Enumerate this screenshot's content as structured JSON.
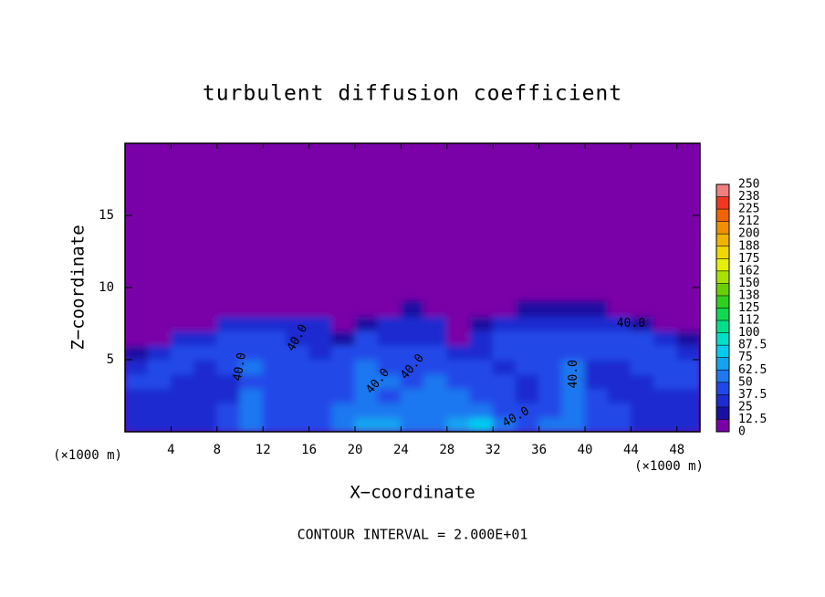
{
  "chart_data": {
    "type": "contour",
    "title": "turbulent diffusion coefficient",
    "xlabel": "X−coordinate",
    "ylabel": "Z−coordinate",
    "x_unit": "(×1000 m)",
    "x_unit_right": "(×1000 m)",
    "note": "CONTOUR INTERVAL = 2.000E+01",
    "xlim": [
      0,
      50
    ],
    "xticks": [
      4,
      8,
      12,
      16,
      20,
      24,
      28,
      32,
      36,
      40,
      44,
      48
    ],
    "ylim": [
      0,
      20
    ],
    "yticks": [
      5,
      10,
      15
    ],
    "contour_labels": [
      "40.0",
      "40.0",
      "40.0",
      "40.0",
      "40.0",
      "40.0",
      "40.0"
    ],
    "contour_color": "#000000",
    "field": {
      "x": [
        1,
        3,
        5,
        7,
        9,
        11,
        13,
        15,
        17,
        19,
        21,
        23,
        25,
        27,
        29,
        31,
        33,
        35,
        37,
        39,
        41,
        43,
        45,
        47,
        49
      ],
      "z": [
        0.5,
        1.5,
        2.5,
        3.5,
        4.5,
        5.5,
        6.5,
        7.5,
        8.5
      ],
      "values": [
        [
          30,
          30,
          35,
          35,
          40,
          55,
          45,
          40,
          45,
          60,
          65,
          70,
          55,
          60,
          70,
          75,
          60,
          45,
          50,
          60,
          45,
          40,
          35,
          35,
          35
        ],
        [
          25,
          25,
          30,
          35,
          40,
          50,
          40,
          40,
          45,
          50,
          60,
          55,
          50,
          55,
          60,
          55,
          45,
          40,
          45,
          55,
          40,
          40,
          35,
          35,
          35
        ],
        [
          35,
          30,
          25,
          25,
          30,
          50,
          40,
          40,
          40,
          45,
          55,
          45,
          50,
          55,
          50,
          45,
          40,
          35,
          40,
          50,
          40,
          35,
          30,
          35,
          35
        ],
        [
          40,
          40,
          35,
          30,
          35,
          45,
          45,
          40,
          40,
          45,
          50,
          50,
          45,
          50,
          45,
          40,
          40,
          35,
          40,
          50,
          35,
          30,
          35,
          40,
          40
        ],
        [
          30,
          45,
          40,
          35,
          40,
          50,
          45,
          40,
          40,
          40,
          50,
          45,
          40,
          45,
          40,
          40,
          35,
          40,
          40,
          50,
          35,
          35,
          40,
          40,
          40
        ],
        [
          20,
          35,
          40,
          40,
          40,
          45,
          40,
          40,
          35,
          40,
          45,
          40,
          40,
          45,
          30,
          35,
          40,
          40,
          40,
          45,
          40,
          40,
          40,
          40,
          35
        ],
        [
          5,
          10,
          30,
          35,
          40,
          40,
          40,
          35,
          35,
          20,
          40,
          35,
          35,
          35,
          10,
          30,
          40,
          40,
          40,
          40,
          40,
          40,
          40,
          30,
          15
        ],
        [
          0,
          0,
          0,
          10,
          30,
          30,
          35,
          35,
          30,
          5,
          20,
          30,
          30,
          25,
          0,
          20,
          35,
          35,
          35,
          35,
          35,
          30,
          20,
          5,
          0
        ],
        [
          0,
          0,
          0,
          0,
          0,
          0,
          5,
          10,
          0,
          0,
          0,
          10,
          15,
          0,
          0,
          0,
          5,
          15,
          20,
          20,
          15,
          5,
          0,
          0,
          0
        ]
      ]
    },
    "colorbar": {
      "ticks": [
        0,
        12.5,
        25,
        37.5,
        50,
        62.5,
        75,
        87.5,
        100,
        {
          "value": 112.5,
          "label": "112"
        },
        125,
        {
          "value": 137.5,
          "label": "138"
        },
        150,
        {
          "value": 162.5,
          "label": "162"
        },
        175,
        {
          "value": 187.5,
          "label": "188"
        },
        200,
        {
          "value": 212.5,
          "label": "212"
        },
        225,
        {
          "value": 237.5,
          "label": "238"
        },
        250
      ],
      "colors": [
        "#7a00a8",
        "#1a10a0",
        "#1c2cd0",
        "#2048e8",
        "#1e78f0",
        "#12a4f0",
        "#00ccf0",
        "#00e0c8",
        "#00e08c",
        "#10d850",
        "#30d020",
        "#68d000",
        "#a8e000",
        "#e4f000",
        "#f0d800",
        "#f0b400",
        "#f09000",
        "#f06400",
        "#f03820",
        "#f08080"
      ]
    }
  }
}
